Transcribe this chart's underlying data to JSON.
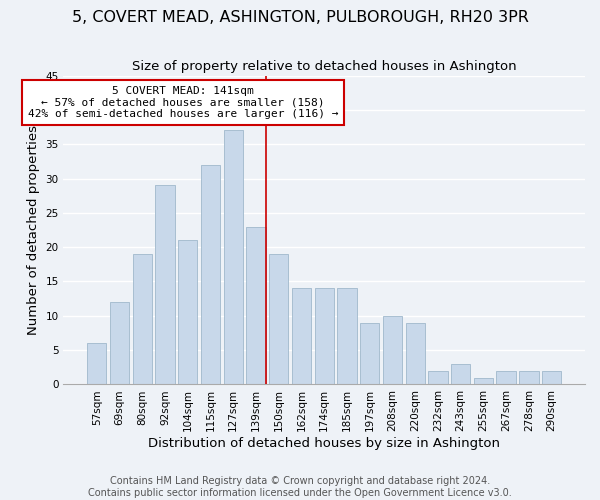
{
  "title": "5, COVERT MEAD, ASHINGTON, PULBOROUGH, RH20 3PR",
  "subtitle": "Size of property relative to detached houses in Ashington",
  "xlabel": "Distribution of detached houses by size in Ashington",
  "ylabel": "Number of detached properties",
  "bar_labels": [
    "57sqm",
    "69sqm",
    "80sqm",
    "92sqm",
    "104sqm",
    "115sqm",
    "127sqm",
    "139sqm",
    "150sqm",
    "162sqm",
    "174sqm",
    "185sqm",
    "197sqm",
    "208sqm",
    "220sqm",
    "232sqm",
    "243sqm",
    "255sqm",
    "267sqm",
    "278sqm",
    "290sqm"
  ],
  "bar_values": [
    6,
    12,
    19,
    29,
    21,
    32,
    37,
    23,
    19,
    14,
    14,
    14,
    9,
    10,
    9,
    2,
    3,
    1,
    2,
    2,
    2
  ],
  "bar_color": "#c8d8ea",
  "bar_edge_color": "#a0b8cc",
  "highlight_index": 7,
  "highlight_line_color": "#cc0000",
  "annotation_line1": "5 COVERT MEAD: 141sqm",
  "annotation_line2": "← 57% of detached houses are smaller (158)",
  "annotation_line3": "42% of semi-detached houses are larger (116) →",
  "annotation_box_edge_color": "#cc0000",
  "ylim": [
    0,
    45
  ],
  "yticks": [
    0,
    5,
    10,
    15,
    20,
    25,
    30,
    35,
    40,
    45
  ],
  "footnote1": "Contains HM Land Registry data © Crown copyright and database right 2024.",
  "footnote2": "Contains public sector information licensed under the Open Government Licence v3.0.",
  "bg_color": "#eef2f7",
  "grid_color": "#ffffff",
  "title_fontsize": 11.5,
  "axis_label_fontsize": 9.5,
  "tick_fontsize": 7.5,
  "footnote_fontsize": 7
}
